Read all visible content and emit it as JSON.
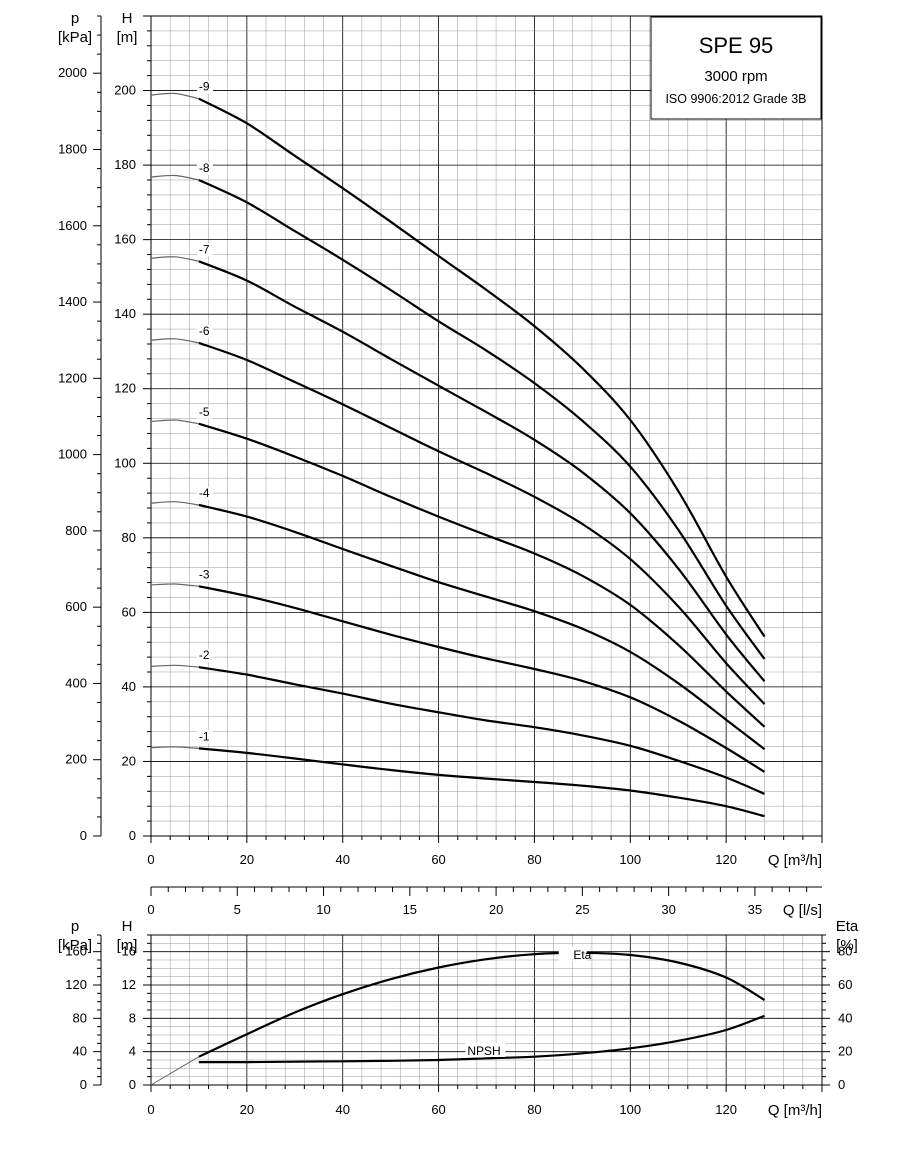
{
  "title": {
    "model": "SPE 95",
    "speed": "3000 rpm",
    "standard": "ISO 9906:2012 Grade 3B"
  },
  "top_axes": {
    "p_label": "p",
    "p_unit": "[kPa]",
    "h_label": "H",
    "h_unit": "[m]",
    "x_label": "Q [m³/h]",
    "p_ticks": [
      "0",
      "200",
      "400",
      "600",
      "800",
      "1000",
      "1200",
      "1400",
      "1600",
      "1800",
      "2000"
    ],
    "h_ticks": [
      "0",
      "20",
      "40",
      "60",
      "80",
      "100",
      "120",
      "140",
      "160",
      "180",
      "200"
    ],
    "x_ticks": [
      "0",
      "20",
      "40",
      "60",
      "80",
      "100",
      "120"
    ]
  },
  "ls_axis": {
    "label": "Q [l/s]",
    "ticks": [
      "0",
      "5",
      "10",
      "15",
      "20",
      "25",
      "30",
      "35"
    ]
  },
  "bottom_axes": {
    "p_label": "p",
    "p_unit": "[kPa]",
    "h_label": "H",
    "h_unit": "[m]",
    "eta_label": "Eta",
    "eta_unit": "[%]",
    "x_label": "Q [m³/h]",
    "p_ticks": [
      "0",
      "40",
      "80",
      "120",
      "160"
    ],
    "h_ticks": [
      "0",
      "4",
      "8",
      "12",
      "16"
    ],
    "eta_ticks": [
      "0",
      "20",
      "40",
      "60",
      "80"
    ],
    "x_ticks": [
      "0",
      "20",
      "40",
      "60",
      "80",
      "100",
      "120"
    ]
  },
  "chart_data": [
    {
      "type": "line",
      "title": "SPE 95",
      "subtitle": "3000 rpm",
      "note": "ISO 9906:2012 Grade 3B",
      "xlabel": "Q [m³/h]",
      "ylabel": "H [m]",
      "y2label": "p [kPa]",
      "xlim": [
        0,
        140
      ],
      "ylim": [
        0,
        220
      ],
      "y2lim": [
        0,
        2150
      ],
      "grid": true,
      "q_points": [
        0,
        5,
        10,
        20,
        30,
        40,
        50,
        60,
        70,
        80,
        90,
        100,
        110,
        120,
        128
      ],
      "series": [
        {
          "name": "-1",
          "values": [
            23.7,
            23.9,
            23.5,
            22.3,
            20.8,
            19.2,
            17.7,
            16.4,
            15.4,
            14.5,
            13.5,
            12.2,
            10.3,
            8.0,
            5.3
          ]
        },
        {
          "name": "-2",
          "values": [
            45.5,
            45.8,
            45.3,
            43.3,
            40.7,
            38.2,
            35.5,
            33.2,
            31.0,
            29.2,
            27.0,
            24.2,
            20.2,
            15.7,
            11.3
          ]
        },
        {
          "name": "-3",
          "values": [
            67.4,
            67.6,
            67.0,
            64.4,
            61.2,
            57.6,
            54.0,
            50.7,
            47.6,
            44.8,
            41.6,
            37.2,
            31.0,
            23.6,
            17.2
          ]
        },
        {
          "name": "-4",
          "values": [
            89.3,
            89.7,
            88.8,
            85.7,
            81.6,
            77.0,
            72.5,
            68.1,
            64.2,
            60.3,
            55.6,
            49.4,
            41.0,
            31.2,
            23.3
          ]
        },
        {
          "name": "-5",
          "values": [
            111.2,
            111.6,
            110.6,
            106.6,
            101.8,
            96.6,
            91.0,
            85.7,
            80.7,
            75.8,
            69.8,
            62.0,
            51.3,
            38.8,
            29.3
          ]
        },
        {
          "name": "-6",
          "values": [
            133.0,
            133.4,
            132.3,
            127.7,
            121.8,
            115.8,
            109.5,
            103.2,
            97.3,
            91.0,
            83.7,
            74.3,
            61.6,
            46.4,
            35.4
          ]
        },
        {
          "name": "-7",
          "values": [
            155.0,
            155.4,
            154.2,
            149.0,
            142.0,
            135.3,
            128.0,
            120.8,
            113.7,
            106.3,
            97.6,
            86.6,
            71.8,
            54.1,
            41.5
          ]
        },
        {
          "name": "-8",
          "values": [
            176.8,
            177.2,
            176.0,
            170.0,
            162.3,
            154.6,
            146.5,
            138.1,
            130.2,
            121.5,
            111.4,
            99.1,
            82.2,
            61.8,
            47.5
          ]
        },
        {
          "name": "-9",
          "values": [
            198.8,
            199.2,
            197.8,
            191.2,
            182.5,
            173.8,
            164.8,
            155.6,
            146.5,
            136.8,
            125.5,
            111.6,
            92.6,
            69.6,
            53.5
          ]
        }
      ]
    },
    {
      "type": "line",
      "xlabel": "Q [m³/h]",
      "ylabel": "H [m]",
      "y2label": "p [kPa]",
      "y3label": "Eta [%]",
      "xlim": [
        0,
        140
      ],
      "ylim": [
        0,
        18
      ],
      "eta_lim": [
        0,
        90
      ],
      "grid": true,
      "series": [
        {
          "name": "Eta",
          "axis": "eta",
          "q": [
            0,
            10,
            20,
            30,
            40,
            50,
            60,
            70,
            80,
            90,
            100,
            110,
            120,
            128
          ],
          "values": [
            0,
            17.0,
            30.5,
            43.5,
            54.5,
            63.5,
            70.5,
            75.5,
            78.5,
            79.3,
            78.0,
            73.5,
            64.5,
            51.0
          ]
        },
        {
          "name": "NPSH",
          "axis": "h",
          "q": [
            10,
            20,
            30,
            40,
            50,
            60,
            70,
            80,
            90,
            100,
            110,
            120,
            128
          ],
          "values": [
            2.75,
            2.75,
            2.8,
            2.85,
            2.9,
            3.0,
            3.2,
            3.4,
            3.8,
            4.4,
            5.3,
            6.6,
            8.3
          ]
        }
      ]
    }
  ]
}
